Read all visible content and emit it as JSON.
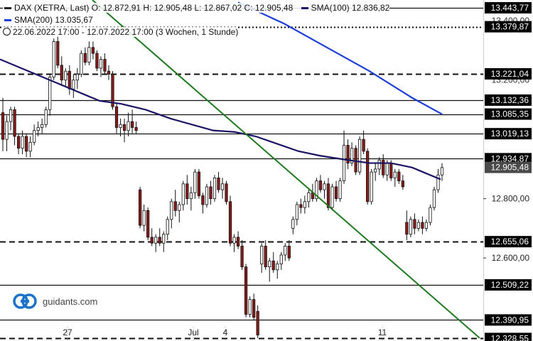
{
  "header": {
    "line1": "DAX (XETRA, Last)  O: 12.872,91  H: 12.905,48  L: 12.867,02  C: 12.905,48",
    "sma100_label": "SMA(100)  12.836,82",
    "sma200_label": "SMA(200)  13.035,67",
    "period": "22.06.2022 17:00 - 12.07.2022 17:00   (3 Wochen, 1 Stunde)"
  },
  "brand": {
    "name": "guidants.com"
  },
  "colors": {
    "sma100": "#1a1464",
    "sma200": "#1e3ed8",
    "trend": "#1f7a1f",
    "up": "#ffffff",
    "down": "#8b1a1a",
    "level_label_bg": "#000000",
    "last_label_bg": "#4a4a4a"
  },
  "chart_data": {
    "type": "candlestick",
    "instrument": "DAX (XETRA, Last)",
    "interval": "1 Stunde",
    "ylim": [
      12320,
      13470
    ],
    "x_ticks": [
      "27",
      "Jul",
      "4",
      "11"
    ],
    "y_ticks": [
      "12.800,00",
      "12.600,00"
    ],
    "y_ticks_partial": [
      "13.400,00",
      "13.200,00"
    ],
    "levels": [
      {
        "label": "13.443,77",
        "value": 13443.77,
        "style": "solid"
      },
      {
        "label": "13.379,87",
        "value": 13379.87,
        "style": "dotted"
      },
      {
        "label": "13.221,04",
        "value": 13221.04,
        "style": "dashed"
      },
      {
        "label": "13.132,36",
        "value": 13132.36,
        "style": "solid"
      },
      {
        "label": "13.085,35",
        "value": 13085.35,
        "style": "solid"
      },
      {
        "label": "13.019,13",
        "value": 13019.13,
        "style": "solid"
      },
      {
        "label": "12.934,87",
        "value": 12934.87,
        "style": "solid"
      },
      {
        "label": "12.655,06",
        "value": 12655.06,
        "style": "dashed"
      },
      {
        "label": "12.509,22",
        "value": 12509.22,
        "style": "solid"
      },
      {
        "label": "12.390,95",
        "value": 12390.95,
        "style": "solid"
      },
      {
        "label": "12.328,55",
        "value": 12328.55,
        "style": "dashed"
      }
    ],
    "last_price": {
      "label": "12.905,48",
      "value": 12905.48
    },
    "candles": [
      [
        13090,
        13140,
        12960,
        13000
      ],
      [
        13000,
        13080,
        12960,
        13060
      ],
      [
        13060,
        13110,
        13030,
        13100
      ],
      [
        13100,
        13110,
        12980,
        13010
      ],
      [
        13010,
        13020,
        12950,
        12970
      ],
      [
        12970,
        13030,
        12950,
        13010
      ],
      [
        13010,
        13020,
        12940,
        12960
      ],
      [
        12960,
        13010,
        12940,
        12990
      ],
      [
        12990,
        13050,
        12980,
        13030
      ],
      [
        13030,
        13060,
        13010,
        13040
      ],
      [
        13040,
        13070,
        13020,
        13050
      ],
      [
        13050,
        13110,
        13040,
        13100
      ],
      [
        13100,
        13220,
        13080,
        13210
      ],
      [
        13210,
        13340,
        13200,
        13330
      ],
      [
        13330,
        13350,
        13240,
        13250
      ],
      [
        13250,
        13280,
        13180,
        13200
      ],
      [
        13200,
        13240,
        13180,
        13230
      ],
      [
        13230,
        13250,
        13150,
        13170
      ],
      [
        13170,
        13220,
        13140,
        13200
      ],
      [
        13200,
        13240,
        13170,
        13220
      ],
      [
        13220,
        13300,
        13210,
        13290
      ],
      [
        13290,
        13310,
        13250,
        13260
      ],
      [
        13260,
        13330,
        13250,
        13310
      ],
      [
        13310,
        13330,
        13270,
        13290
      ],
      [
        13290,
        13300,
        13230,
        13240
      ],
      [
        13240,
        13280,
        13210,
        13270
      ],
      [
        13270,
        13290,
        13220,
        13230
      ],
      [
        13230,
        13250,
        13200,
        13220
      ],
      [
        13220,
        13230,
        13100,
        13110
      ],
      [
        13110,
        13120,
        13020,
        13040
      ],
      [
        13040,
        13070,
        13010,
        13050
      ],
      [
        13050,
        13070,
        12990,
        13030
      ],
      [
        13030,
        13090,
        13010,
        13060
      ],
      [
        13060,
        13100,
        13020,
        13040
      ],
      [
        13040,
        13060,
        13020,
        13030
      ],
      [
        12830,
        12840,
        12700,
        12710
      ],
      [
        12710,
        12780,
        12690,
        12760
      ],
      [
        12760,
        12770,
        12660,
        12670
      ],
      [
        12670,
        12700,
        12640,
        12650
      ],
      [
        12650,
        12680,
        12620,
        12670
      ],
      [
        12670,
        12700,
        12640,
        12650
      ],
      [
        12650,
        12690,
        12620,
        12680
      ],
      [
        12680,
        12740,
        12660,
        12730
      ],
      [
        12730,
        12800,
        12700,
        12790
      ],
      [
        12790,
        12830,
        12740,
        12760
      ],
      [
        12760,
        12790,
        12720,
        12780
      ],
      [
        12780,
        12860,
        12760,
        12850
      ],
      [
        12850,
        12880,
        12780,
        12800
      ],
      [
        12800,
        12840,
        12760,
        12820
      ],
      [
        12820,
        12900,
        12800,
        12890
      ],
      [
        12890,
        12900,
        12800,
        12810
      ],
      [
        12810,
        12820,
        12750,
        12780
      ],
      [
        12780,
        12850,
        12770,
        12840
      ],
      [
        12840,
        12860,
        12780,
        12800
      ],
      [
        12800,
        12880,
        12790,
        12870
      ],
      [
        12870,
        12890,
        12820,
        12830
      ],
      [
        12830,
        12870,
        12800,
        12850
      ],
      [
        12850,
        12860,
        12780,
        12790
      ],
      [
        12790,
        12810,
        12640,
        12650
      ],
      [
        12650,
        12680,
        12620,
        12670
      ],
      [
        12670,
        12690,
        12630,
        12640
      ],
      [
        12640,
        12660,
        12560,
        12570
      ],
      [
        12570,
        12580,
        12400,
        12410
      ],
      [
        12410,
        12470,
        12400,
        12460
      ],
      [
        12460,
        12480,
        12390,
        12400
      ],
      [
        12420,
        12440,
        12330,
        12340
      ],
      [
        12580,
        12650,
        12550,
        12640
      ],
      [
        12640,
        12660,
        12560,
        12570
      ],
      [
        12570,
        12600,
        12520,
        12590
      ],
      [
        12590,
        12620,
        12550,
        12560
      ],
      [
        12560,
        12590,
        12530,
        12580
      ],
      [
        12580,
        12620,
        12560,
        12610
      ],
      [
        12610,
        12650,
        12590,
        12640
      ],
      [
        12640,
        12660,
        12590,
        12600
      ],
      [
        12700,
        12740,
        12680,
        12730
      ],
      [
        12730,
        12790,
        12710,
        12780
      ],
      [
        12780,
        12800,
        12750,
        12770
      ],
      [
        12770,
        12810,
        12750,
        12790
      ],
      [
        12790,
        12830,
        12770,
        12820
      ],
      [
        12820,
        12850,
        12790,
        12800
      ],
      [
        12800,
        12870,
        12790,
        12860
      ],
      [
        12860,
        12880,
        12820,
        12830
      ],
      [
        12830,
        12860,
        12800,
        12850
      ],
      [
        12850,
        12870,
        12760,
        12770
      ],
      [
        12770,
        12850,
        12760,
        12840
      ],
      [
        12840,
        12860,
        12790,
        12800
      ],
      [
        12800,
        12870,
        12790,
        12860
      ],
      [
        12860,
        13030,
        12850,
        12980
      ],
      [
        12980,
        13000,
        12900,
        12920
      ],
      [
        12920,
        12990,
        12910,
        12970
      ],
      [
        12970,
        12980,
        12880,
        12890
      ],
      [
        12890,
        13010,
        12880,
        13000
      ],
      [
        13000,
        13030,
        12950,
        12960
      ],
      [
        12960,
        12970,
        12780,
        12790
      ],
      [
        12790,
        12900,
        12780,
        12890
      ],
      [
        12890,
        12920,
        12860,
        12900
      ],
      [
        12900,
        12940,
        12880,
        12930
      ],
      [
        12930,
        12950,
        12870,
        12880
      ],
      [
        12880,
        12930,
        12860,
        12920
      ],
      [
        12920,
        12930,
        12860,
        12870
      ],
      [
        12870,
        12900,
        12840,
        12890
      ],
      [
        12890,
        12900,
        12850,
        12860
      ],
      [
        12860,
        12880,
        12830,
        12840
      ],
      [
        12720,
        12760,
        12660,
        12680
      ],
      [
        12680,
        12740,
        12670,
        12730
      ],
      [
        12730,
        12750,
        12680,
        12700
      ],
      [
        12700,
        12730,
        12690,
        12720
      ],
      [
        12720,
        12740,
        12680,
        12700
      ],
      [
        12700,
        12730,
        12690,
        12720
      ],
      [
        12720,
        12780,
        12710,
        12770
      ],
      [
        12770,
        12840,
        12760,
        12830
      ],
      [
        12830,
        12900,
        12820,
        12880
      ],
      [
        12880,
        12920,
        12860,
        12905
      ]
    ],
    "sma100": [
      [
        0,
        13270
      ],
      [
        30,
        13240
      ],
      [
        60,
        13210
      ],
      [
        90,
        13180
      ],
      [
        120,
        13150
      ],
      [
        140,
        13130
      ],
      [
        170,
        13120
      ],
      [
        205,
        13100
      ],
      [
        240,
        13070
      ],
      [
        270,
        13050
      ],
      [
        300,
        13030
      ],
      [
        330,
        13025
      ],
      [
        360,
        13010
      ],
      [
        390,
        12985
      ],
      [
        420,
        12960
      ],
      [
        450,
        12945
      ],
      [
        490,
        12930
      ],
      [
        520,
        12920
      ],
      [
        550,
        12920
      ],
      [
        580,
        12905
      ],
      [
        600,
        12885
      ],
      [
        620,
        12865
      ]
    ],
    "sma200": [
      [
        335,
        13462
      ],
      [
        400,
        13390
      ],
      [
        460,
        13310
      ],
      [
        520,
        13230
      ],
      [
        580,
        13140
      ],
      [
        622,
        13085
      ]
    ],
    "trendline": {
      "from": [
        130,
        13470
      ],
      "to": [
        675,
        12330
      ]
    }
  }
}
